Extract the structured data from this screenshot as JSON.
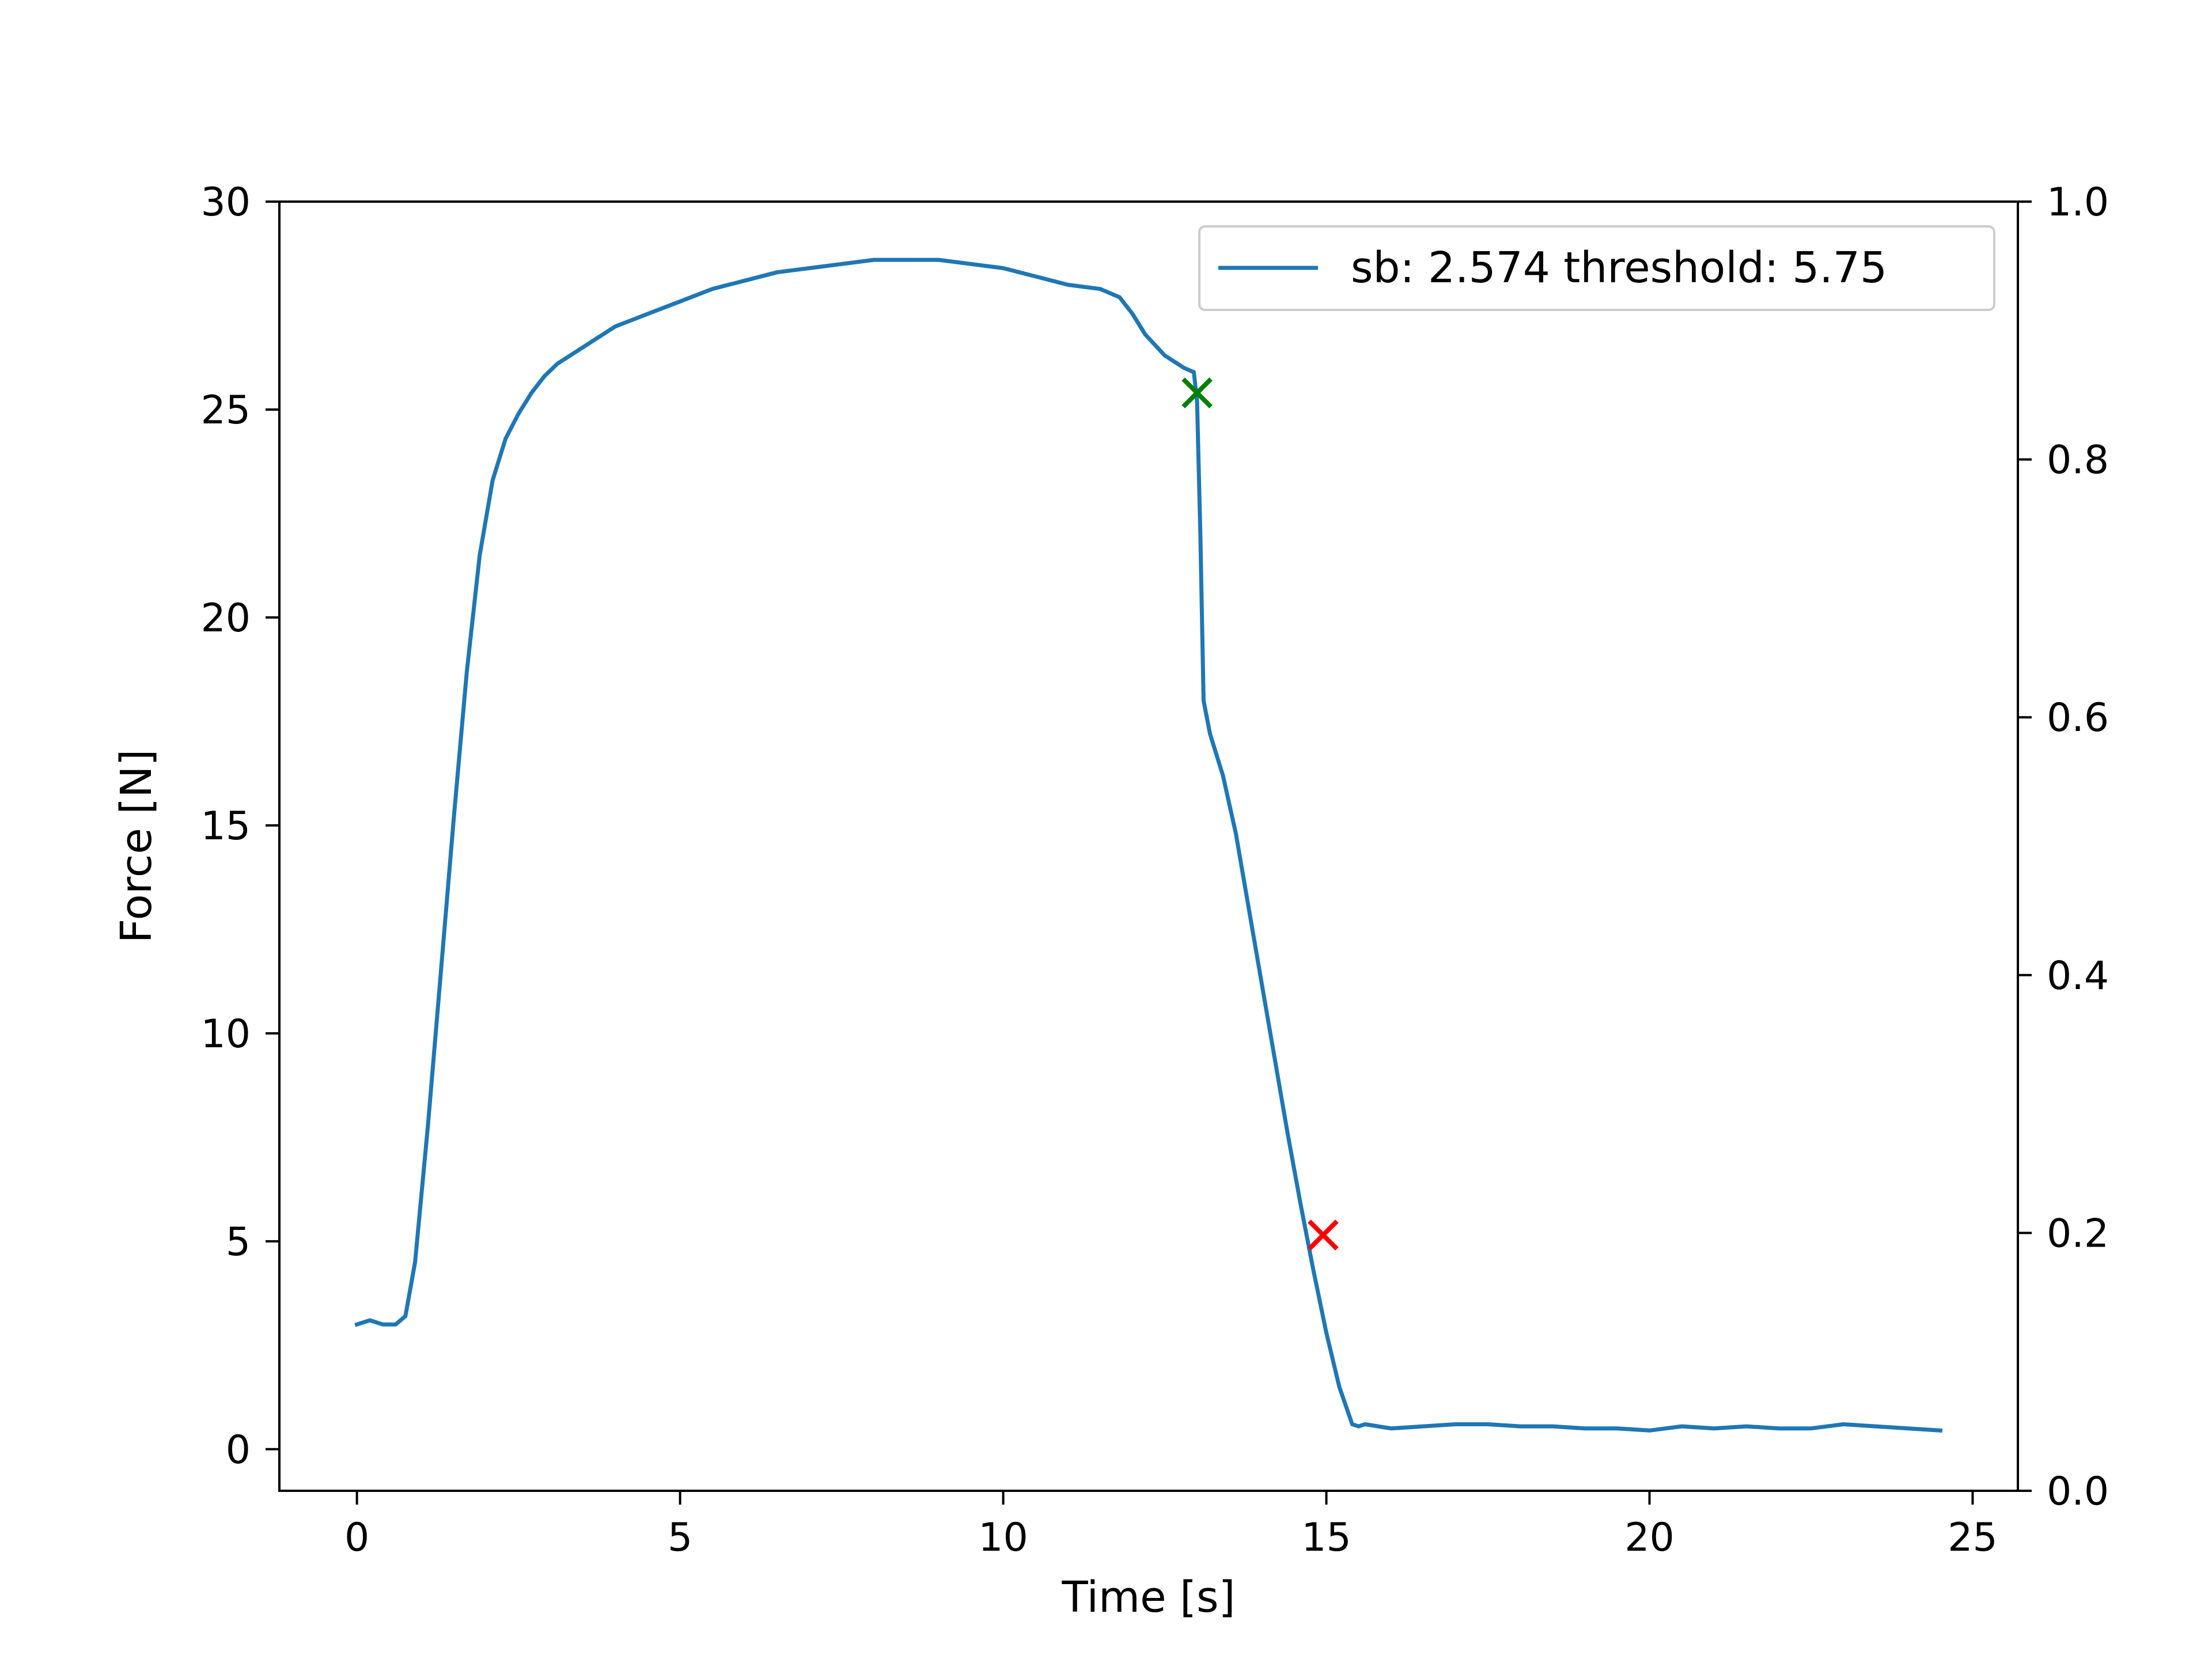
{
  "chart_data": {
    "type": "line",
    "xlabel": "Time [s]",
    "ylabel": "Force [N]",
    "xlim": [
      -1.2,
      25.7
    ],
    "ylim": [
      -1.0,
      30.0
    ],
    "y2lim": [
      0.0,
      1.0
    ],
    "x_ticks": [
      0,
      5,
      10,
      15,
      20,
      25
    ],
    "y_ticks": [
      0,
      5,
      10,
      15,
      20,
      25,
      30
    ],
    "y2_ticks": [
      "0.0",
      "0.2",
      "0.4",
      "0.6",
      "0.8",
      "1.0"
    ],
    "grid": false,
    "legend_position": "upper-right",
    "series": [
      {
        "name": "sb: 2.574 threshold: 5.75",
        "color": "#1f77b4",
        "x": [
          0,
          0.2,
          0.4,
          0.6,
          0.75,
          0.9,
          1.1,
          1.3,
          1.5,
          1.7,
          1.9,
          2.1,
          2.3,
          2.5,
          2.7,
          2.9,
          3.1,
          3.4,
          3.7,
          4.0,
          4.5,
          5.0,
          5.5,
          6.0,
          6.5,
          7.0,
          7.5,
          8.0,
          8.5,
          9.0,
          9.5,
          10.0,
          10.5,
          11.0,
          11.5,
          11.8,
          12.0,
          12.2,
          12.5,
          12.8,
          12.95,
          13.0,
          13.05,
          13.1,
          13.2,
          13.4,
          13.6,
          13.8,
          14.0,
          14.2,
          14.4,
          14.6,
          14.8,
          15.0,
          15.2,
          15.4,
          15.5,
          15.6,
          16.0,
          16.5,
          17.0,
          17.5,
          18.0,
          18.5,
          19.0,
          19.5,
          20.0,
          20.5,
          21.0,
          21.5,
          22.0,
          22.5,
          23.0,
          23.5,
          24.0,
          24.5
        ],
        "y": [
          3.0,
          3.1,
          3.0,
          3.0,
          3.2,
          4.5,
          7.8,
          11.5,
          15.2,
          18.7,
          21.5,
          23.3,
          24.3,
          24.9,
          25.4,
          25.8,
          26.1,
          26.4,
          26.7,
          27.0,
          27.3,
          27.6,
          27.9,
          28.1,
          28.3,
          28.4,
          28.5,
          28.6,
          28.6,
          28.6,
          28.5,
          28.4,
          28.2,
          28.0,
          27.9,
          27.7,
          27.3,
          26.8,
          26.3,
          26.0,
          25.9,
          25.2,
          22.0,
          18.0,
          17.2,
          16.2,
          14.8,
          13.0,
          11.2,
          9.4,
          7.6,
          5.9,
          4.3,
          2.8,
          1.5,
          0.6,
          0.55,
          0.6,
          0.5,
          0.55,
          0.6,
          0.6,
          0.55,
          0.55,
          0.5,
          0.5,
          0.45,
          0.55,
          0.5,
          0.55,
          0.5,
          0.5,
          0.6,
          0.55,
          0.5,
          0.45
        ]
      }
    ],
    "markers": [
      {
        "label": "green-x-marker",
        "x": 13.0,
        "y": 25.4,
        "color": "#008000",
        "shape": "x"
      },
      {
        "label": "red-x-marker",
        "x": 14.95,
        "y": 5.15,
        "color": "#ff0000",
        "shape": "x"
      }
    ]
  }
}
